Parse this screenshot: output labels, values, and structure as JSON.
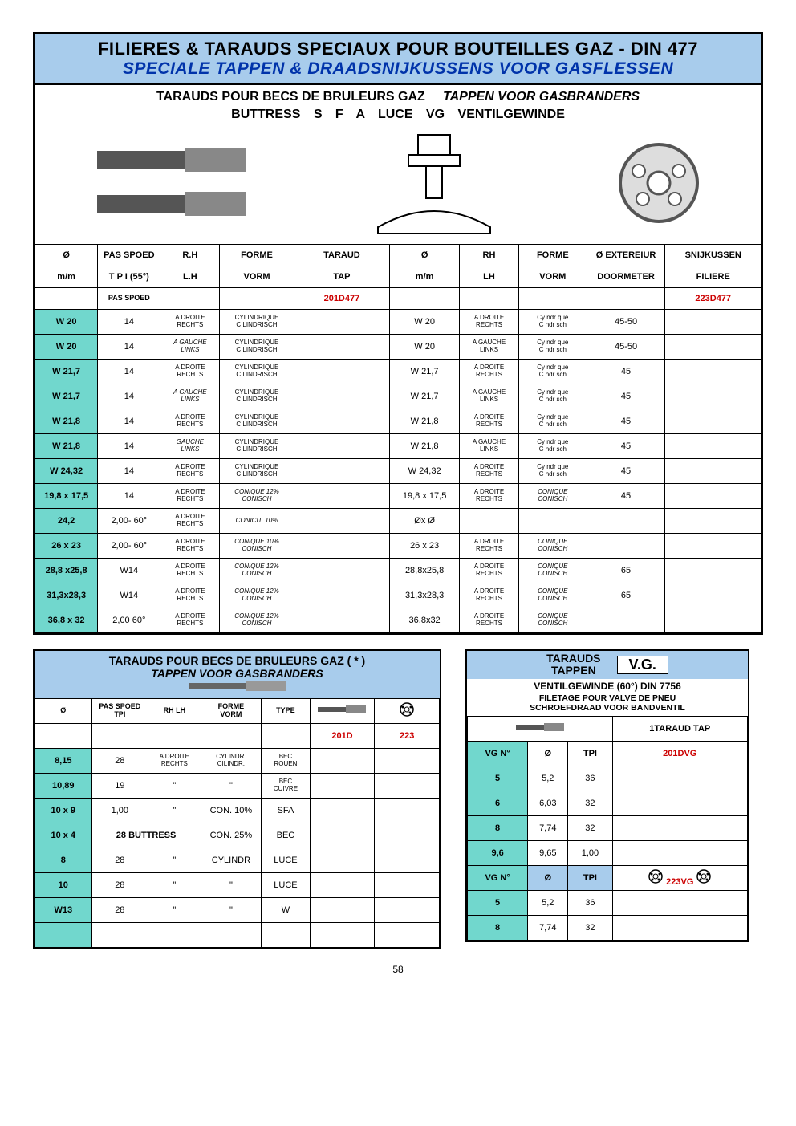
{
  "page_number": "58",
  "colors": {
    "header_bg": "#a8ccec",
    "teal": "#71d7cd",
    "red": "#cc0000",
    "navy": "#0033aa"
  },
  "header": {
    "line1": "FILIERES & TARAUDS SPECIAUX POUR BOUTEILLES  GAZ -   DIN 477",
    "line2": "SPECIALE TAPPEN & DRAADSNIJKUSSENS VOOR GASFLESSEN",
    "sub1_a": "TARAUDS POUR BECS DE BRULEURS GAZ",
    "sub1_b": "TAPPEN VOOR GASBRANDERS",
    "sub2": "BUTTRESS   S F A   LUCE   VG  VENTILGEWINDE"
  },
  "main_table": {
    "hdr1": [
      "Ø",
      "PAS  SPOED",
      "R.H",
      "FORME",
      "TARAUD",
      "Ø",
      "RH",
      "FORME",
      "Ø EXTEREIUR",
      "SNIJKUSSEN"
    ],
    "hdr2": [
      "m/m",
      "T P I (55°)",
      "L.H",
      "VORM",
      "TAP",
      "m/m",
      "LH",
      "VORM",
      "DOORMETER",
      "FILIERE"
    ],
    "hdr3": [
      "",
      "PAS SPOED",
      "",
      "",
      "201D477",
      "",
      "",
      "",
      "",
      "223D477"
    ],
    "rows": [
      {
        "c": [
          "W 20",
          "14",
          [
            "A DROITE",
            "RECHTS"
          ],
          [
            "CYLINDRIQUE",
            "CILINDRISCH"
          ],
          "",
          "W 20",
          [
            "A DROITE",
            "RECHTS"
          ],
          [
            "Cy ndr que",
            "C  ndr sch"
          ],
          "45-50",
          ""
        ]
      },
      {
        "c": [
          "W 20",
          "14",
          [
            "A GAUCHE",
            "LINKS"
          ],
          [
            "CYLINDRIQUE",
            "CILINDRISCH"
          ],
          "",
          "W 20",
          [
            "A GAUCHE",
            "LINKS"
          ],
          [
            "Cy ndr que",
            "C  ndr sch"
          ],
          "45-50",
          ""
        ],
        "it3": true
      },
      {
        "c": [
          "W 21,7",
          "14",
          [
            "A DROITE",
            "RECHTS"
          ],
          [
            "CYLINDRIQUE",
            "CILINDRISCH"
          ],
          "",
          "W 21,7",
          [
            "A DROITE",
            "RECHTS"
          ],
          [
            "Cy ndr que",
            "C  ndr sch"
          ],
          "45",
          ""
        ]
      },
      {
        "c": [
          "W 21,7",
          "14",
          [
            "A GAUCHE",
            "LINKS"
          ],
          [
            "CYLINDRIQUE",
            "CILINDRISCH"
          ],
          "",
          "W 21,7",
          [
            "A GAUCHE",
            "LINKS"
          ],
          [
            "Cy ndr que",
            "C  ndr sch"
          ],
          "45",
          ""
        ],
        "it3": true
      },
      {
        "c": [
          "W 21,8",
          "14",
          [
            "A DROITE",
            "RECHTS"
          ],
          [
            "CYLINDRIQUE",
            "CILINDRISCH"
          ],
          "",
          "W 21,8",
          [
            "A DROITE",
            "RECHTS"
          ],
          [
            "Cy ndr que",
            "C  ndr sch"
          ],
          "45",
          ""
        ]
      },
      {
        "c": [
          "W 21,8",
          "14",
          [
            "GAUCHE",
            "LINKS"
          ],
          [
            "CYLINDRIQUE",
            "CILINDRISCH"
          ],
          "",
          "W 21,8",
          [
            "A GAUCHE",
            "LINKS"
          ],
          [
            "Cy ndr que",
            "C  ndr sch"
          ],
          "45",
          ""
        ],
        "it3": true
      },
      {
        "c": [
          "W 24,32",
          "14",
          [
            "A DROITE",
            "RECHTS"
          ],
          [
            "CYLINDRIQUE",
            "CILINDRISCH"
          ],
          "",
          "W 24,32",
          [
            "A DROITE",
            "RECHTS"
          ],
          [
            "Cy ndr que",
            "C  ndr sch"
          ],
          "45",
          ""
        ]
      },
      {
        "c": [
          "19,8 x 17,5",
          "14",
          [
            "A DROITE",
            "RECHTS"
          ],
          [
            "CONIQUE 12%",
            "CONISCH"
          ],
          "",
          "19,8 x 17,5",
          [
            "A DROITE",
            "RECHTS"
          ],
          [
            "CONIQUE",
            "CONISCH"
          ],
          "45",
          ""
        ],
        "it4": true,
        "it8": true
      },
      {
        "c": [
          "24,2",
          "2,00- 60°",
          [
            "A DROITE",
            "RECHTS"
          ],
          [
            "CONICIT. 10%",
            ""
          ],
          "",
          "Øx Ø",
          "",
          "",
          "",
          ""
        ],
        "it4": true
      },
      {
        "c": [
          "26 x 23",
          "2,00- 60°",
          [
            "A DROITE",
            "RECHTS"
          ],
          [
            "CONIQUE 10%",
            "CONISCH"
          ],
          "",
          "26 x 23",
          [
            "A DROITE",
            "RECHTS"
          ],
          [
            "CONIQUE",
            "CONISCH"
          ],
          "",
          ""
        ],
        "it4": true,
        "it8": true
      },
      {
        "c": [
          "28,8 x25,8",
          "W14",
          [
            "A DROITE",
            "RECHTS"
          ],
          [
            "CONIQUE 12%",
            "CONISCH"
          ],
          "",
          "28,8x25,8",
          [
            "A DROITE",
            "RECHTS"
          ],
          [
            "CONIQUE",
            "CONISCH"
          ],
          "65",
          ""
        ],
        "it4": true,
        "it8": true
      },
      {
        "c": [
          "31,3x28,3",
          "W14",
          [
            "A DROITE",
            "RECHTS"
          ],
          [
            "CONIQUE 12%",
            "CONISCH"
          ],
          "",
          "31,3x28,3",
          [
            "A DROITE",
            "RECHTS"
          ],
          [
            "CONIQUE",
            "CONISCH"
          ],
          "65",
          ""
        ],
        "it4": true,
        "it8": true
      },
      {
        "c": [
          "36,8 x 32",
          "2,00 60°",
          [
            "A DROITE",
            "RECHTS"
          ],
          [
            "CONIQUE 12%",
            "CONISCH"
          ],
          "",
          "36,8x32",
          [
            "A DROITE",
            "RECHTS"
          ],
          [
            "CONIQUE",
            "CONISCH"
          ],
          "",
          ""
        ],
        "it4": true,
        "it8": true
      }
    ]
  },
  "left_panel": {
    "title1": "TARAUDS POUR BECS DE BRULEURS GAZ   ( * )",
    "title2": "TAPPEN VOOR GASBRANDERS",
    "hdr1": [
      "Ø",
      "PAS  SPOED\nTPI",
      "RH   LH",
      "FORME\nVORM",
      "TYPE",
      "__TAPICON__",
      "__DIEICON__"
    ],
    "hdr2": [
      "",
      "",
      "",
      "",
      "",
      "201D",
      "223"
    ],
    "rows": [
      [
        "8,15",
        "28",
        [
          "A DROITE",
          "RECHTS"
        ],
        [
          "CYLINDR.",
          "CILINDR."
        ],
        [
          "BEC",
          "ROUEN"
        ],
        "",
        ""
      ],
      [
        "10,89",
        "19",
        "\"",
        "\"",
        [
          "BEC",
          "CUIVRE"
        ],
        "",
        ""
      ],
      [
        "10 x 9",
        "1,00",
        "\"",
        "CON. 10%",
        "SFA",
        "",
        ""
      ],
      [
        "10 x 4",
        "28 BUTTRESS",
        "__SPAN__",
        "CON. 25%",
        "BEC",
        "",
        ""
      ],
      [
        "8",
        "28",
        "\"",
        "CYLINDR",
        "LUCE",
        "",
        ""
      ],
      [
        "10",
        "28",
        "\"",
        "\"",
        "LUCE",
        "",
        ""
      ],
      [
        "W13",
        "28",
        "\"",
        "\"",
        "W",
        "",
        ""
      ],
      [
        "",
        "",
        "",
        "",
        "",
        "",
        ""
      ]
    ]
  },
  "right_panel": {
    "head_a": "TARAUDS",
    "head_b": "TAPPEN",
    "badge": "V.G.",
    "sub": "VENTILGEWINDE (60°) DIN 7756",
    "sub2a": "FILETAGE POUR VALVE DE PNEU",
    "sub2b": "SCHROEFDRAAD VOOR BANDVENTIL",
    "tap_hdr": "1TARAUD TAP",
    "col_hdr": [
      "VG N°",
      "Ø",
      "TPI",
      "201DVG"
    ],
    "rows1": [
      [
        "5",
        "5,2",
        "36",
        ""
      ],
      [
        "6",
        "6,03",
        "32",
        ""
      ],
      [
        "8",
        "7,74",
        "32",
        ""
      ],
      [
        "9,6",
        "9,65",
        "1,00",
        ""
      ]
    ],
    "col_hdr2": [
      "VG N°",
      "Ø",
      "TPI",
      "__DIE__ 223VG __DIE__"
    ],
    "rows2": [
      [
        "5",
        "5,2",
        "36",
        ""
      ],
      [
        "8",
        "7,74",
        "32",
        ""
      ]
    ]
  }
}
